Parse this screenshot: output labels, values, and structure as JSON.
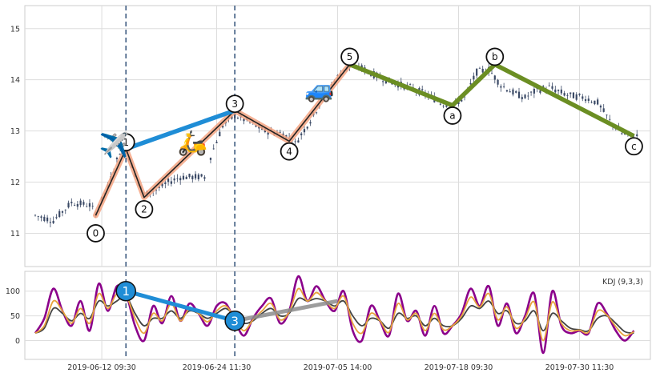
{
  "chart_data": [
    {
      "type": "candlestick",
      "panel": "price",
      "ylim": [
        10.35,
        15.45
      ],
      "yticks": [
        11,
        12,
        13,
        14,
        15
      ],
      "grid": true,
      "x_index_range": [
        0,
        100
      ],
      "xtick_positions": [
        11,
        30,
        50,
        70,
        90
      ],
      "xtick_labels": [
        "2019-06-12 09:30",
        "2019-06-24 11:30",
        "2019-07-05 14:00",
        "2019-07-18 09:30",
        "2019-07-30 11:30"
      ],
      "vertical_markers": [
        15,
        33
      ],
      "candles_anchor": [
        [
          0,
          11.35
        ],
        [
          3,
          11.25
        ],
        [
          6,
          11.6
        ],
        [
          9,
          11.55
        ],
        [
          10,
          11.4
        ],
        [
          12,
          11.9
        ],
        [
          14,
          12.6
        ],
        [
          15,
          12.65
        ],
        [
          17,
          12.0
        ],
        [
          18,
          11.75
        ],
        [
          20,
          11.85
        ],
        [
          22,
          12.0
        ],
        [
          24,
          12.1
        ],
        [
          27,
          12.1
        ],
        [
          28,
          12.1
        ],
        [
          29,
          12.5
        ],
        [
          31,
          13.1
        ],
        [
          33,
          13.3
        ],
        [
          35,
          13.2
        ],
        [
          38,
          13.0
        ],
        [
          41,
          12.95
        ],
        [
          43,
          12.75
        ],
        [
          46,
          13.3
        ],
        [
          48,
          13.75
        ],
        [
          51,
          14.2
        ],
        [
          53,
          14.3
        ],
        [
          56,
          14.1
        ],
        [
          59,
          13.95
        ],
        [
          62,
          13.85
        ],
        [
          65,
          13.7
        ],
        [
          67,
          13.55
        ],
        [
          69,
          13.5
        ],
        [
          71,
          13.65
        ],
        [
          73,
          14.15
        ],
        [
          75,
          14.2
        ],
        [
          77,
          13.9
        ],
        [
          79,
          13.75
        ],
        [
          81,
          13.65
        ],
        [
          83,
          13.8
        ],
        [
          85,
          13.85
        ],
        [
          88,
          13.7
        ],
        [
          91,
          13.65
        ],
        [
          93,
          13.55
        ],
        [
          95,
          13.2
        ],
        [
          97,
          12.95
        ],
        [
          99,
          12.9
        ]
      ],
      "wave_main": {
        "points": [
          [
            10,
            11.35
          ],
          [
            15,
            12.65
          ],
          [
            18,
            11.7
          ],
          [
            33,
            13.4
          ],
          [
            42,
            12.8
          ],
          [
            52,
            14.3
          ]
        ],
        "labels": [
          "0",
          "1",
          "2",
          "3",
          "4",
          "5"
        ]
      },
      "wave_correction": {
        "points": [
          [
            52,
            14.3
          ],
          [
            69,
            13.5
          ],
          [
            76,
            14.3
          ],
          [
            99,
            12.9
          ]
        ],
        "labels": [
          "a",
          "b",
          "c"
        ]
      },
      "wave_blue_segment": [
        [
          15,
          12.65
        ],
        [
          33,
          13.4
        ]
      ],
      "label_offsets": [
        [
          10,
          11.0
        ],
        [
          15,
          12.78
        ],
        [
          18,
          11.47
        ],
        [
          33,
          13.53
        ],
        [
          42,
          12.6
        ],
        [
          52,
          14.45
        ],
        [
          69,
          13.3
        ],
        [
          76,
          14.45
        ],
        [
          99,
          12.7
        ]
      ],
      "emoji_markers": [
        {
          "emoji": "✈️",
          "x": 13,
          "y": 12.75
        },
        {
          "emoji": "🛵",
          "x": 26,
          "y": 12.8
        },
        {
          "emoji": "🚙",
          "x": 47,
          "y": 13.85
        }
      ]
    },
    {
      "type": "line",
      "panel": "indicator",
      "legend": "KDJ (9,3,3)",
      "ylim": [
        -38,
        140
      ],
      "yticks": [
        0,
        50,
        100
      ],
      "grid": true,
      "series": [
        {
          "name": "J",
          "color": "#8b008b",
          "points": [
            [
              0,
              15
            ],
            [
              1.5,
              45
            ],
            [
              3,
              105
            ],
            [
              4.5,
              60
            ],
            [
              6,
              30
            ],
            [
              7.5,
              80
            ],
            [
              9,
              20
            ],
            [
              10.5,
              115
            ],
            [
              12,
              60
            ],
            [
              13.5,
              110
            ],
            [
              15,
              95
            ],
            [
              16.5,
              30
            ],
            [
              18,
              0
            ],
            [
              19.5,
              70
            ],
            [
              21,
              35
            ],
            [
              22.5,
              90
            ],
            [
              24,
              40
            ],
            [
              25.5,
              75
            ],
            [
              27,
              55
            ],
            [
              28.5,
              30
            ],
            [
              30,
              70
            ],
            [
              31.5,
              75
            ],
            [
              33,
              40
            ],
            [
              34.5,
              10
            ],
            [
              36,
              45
            ],
            [
              37.5,
              70
            ],
            [
              39,
              85
            ],
            [
              40.5,
              35
            ],
            [
              42,
              60
            ],
            [
              43.5,
              130
            ],
            [
              45,
              80
            ],
            [
              46.5,
              110
            ],
            [
              48,
              80
            ],
            [
              49.5,
              60
            ],
            [
              51,
              100
            ],
            [
              52.5,
              20
            ],
            [
              54,
              0
            ],
            [
              55.5,
              70
            ],
            [
              57,
              40
            ],
            [
              58.5,
              10
            ],
            [
              60,
              95
            ],
            [
              61.5,
              40
            ],
            [
              63,
              60
            ],
            [
              64.5,
              10
            ],
            [
              66,
              70
            ],
            [
              67.5,
              15
            ],
            [
              69,
              30
            ],
            [
              70.5,
              55
            ],
            [
              72,
              105
            ],
            [
              73.5,
              70
            ],
            [
              75,
              110
            ],
            [
              76.5,
              30
            ],
            [
              78,
              75
            ],
            [
              79.5,
              15
            ],
            [
              81,
              50
            ],
            [
              82.5,
              95
            ],
            [
              84,
              -25
            ],
            [
              85.5,
              100
            ],
            [
              87,
              30
            ],
            [
              88.5,
              15
            ],
            [
              90,
              20
            ],
            [
              91.5,
              15
            ],
            [
              93,
              75
            ],
            [
              94.5,
              55
            ],
            [
              96,
              20
            ],
            [
              97.5,
              0
            ],
            [
              99,
              20
            ]
          ]
        },
        {
          "name": "D",
          "color": "#444444",
          "points": [
            [
              0,
              15
            ],
            [
              1.5,
              25
            ],
            [
              3,
              65
            ],
            [
              4.5,
              55
            ],
            [
              6,
              40
            ],
            [
              7.5,
              55
            ],
            [
              9,
              45
            ],
            [
              10.5,
              80
            ],
            [
              12,
              70
            ],
            [
              13.5,
              80
            ],
            [
              15,
              90
            ],
            [
              16.5,
              55
            ],
            [
              18,
              30
            ],
            [
              19.5,
              45
            ],
            [
              21,
              45
            ],
            [
              22.5,
              60
            ],
            [
              24,
              45
            ],
            [
              25.5,
              60
            ],
            [
              27,
              55
            ],
            [
              28.5,
              45
            ],
            [
              30,
              55
            ],
            [
              31.5,
              65
            ],
            [
              33,
              50
            ],
            [
              34.5,
              35
            ],
            [
              36,
              40
            ],
            [
              37.5,
              55
            ],
            [
              39,
              65
            ],
            [
              40.5,
              50
            ],
            [
              42,
              55
            ],
            [
              43.5,
              85
            ],
            [
              45,
              80
            ],
            [
              46.5,
              85
            ],
            [
              48,
              80
            ],
            [
              49.5,
              70
            ],
            [
              51,
              80
            ],
            [
              52.5,
              50
            ],
            [
              54,
              30
            ],
            [
              55.5,
              45
            ],
            [
              57,
              40
            ],
            [
              58.5,
              25
            ],
            [
              60,
              55
            ],
            [
              61.5,
              45
            ],
            [
              63,
              50
            ],
            [
              64.5,
              30
            ],
            [
              66,
              45
            ],
            [
              67.5,
              30
            ],
            [
              69,
              30
            ],
            [
              70.5,
              45
            ],
            [
              72,
              70
            ],
            [
              73.5,
              65
            ],
            [
              75,
              80
            ],
            [
              76.5,
              55
            ],
            [
              78,
              60
            ],
            [
              79.5,
              35
            ],
            [
              81,
              40
            ],
            [
              82.5,
              60
            ],
            [
              84,
              20
            ],
            [
              85.5,
              55
            ],
            [
              87,
              40
            ],
            [
              88.5,
              25
            ],
            [
              90,
              22
            ],
            [
              91.5,
              20
            ],
            [
              93,
              45
            ],
            [
              94.5,
              50
            ],
            [
              96,
              35
            ],
            [
              97.5,
              18
            ],
            [
              99,
              15
            ]
          ]
        },
        {
          "name": "K",
          "color": "#e8a33d",
          "points": [
            [
              0,
              15
            ],
            [
              1.5,
              30
            ],
            [
              3,
              80
            ],
            [
              4.5,
              60
            ],
            [
              6,
              35
            ],
            [
              7.5,
              65
            ],
            [
              9,
              35
            ],
            [
              10.5,
              95
            ],
            [
              12,
              65
            ],
            [
              13.5,
              95
            ],
            [
              15,
              92
            ],
            [
              16.5,
              45
            ],
            [
              18,
              15
            ],
            [
              19.5,
              55
            ],
            [
              21,
              40
            ],
            [
              22.5,
              75
            ],
            [
              24,
              40
            ],
            [
              25.5,
              65
            ],
            [
              27,
              55
            ],
            [
              28.5,
              38
            ],
            [
              30,
              60
            ],
            [
              31.5,
              70
            ],
            [
              33,
              45
            ],
            [
              34.5,
              20
            ],
            [
              36,
              42
            ],
            [
              37.5,
              60
            ],
            [
              39,
              75
            ],
            [
              40.5,
              42
            ],
            [
              42,
              58
            ],
            [
              43.5,
              105
            ],
            [
              45,
              80
            ],
            [
              46.5,
              97
            ],
            [
              48,
              80
            ],
            [
              49.5,
              65
            ],
            [
              51,
              90
            ],
            [
              52.5,
              35
            ],
            [
              54,
              15
            ],
            [
              55.5,
              55
            ],
            [
              57,
              40
            ],
            [
              58.5,
              17
            ],
            [
              60,
              75
            ],
            [
              61.5,
              42
            ],
            [
              63,
              55
            ],
            [
              64.5,
              20
            ],
            [
              66,
              55
            ],
            [
              67.5,
              22
            ],
            [
              69,
              30
            ],
            [
              70.5,
              50
            ],
            [
              72,
              88
            ],
            [
              73.5,
              68
            ],
            [
              75,
              95
            ],
            [
              76.5,
              42
            ],
            [
              78,
              68
            ],
            [
              79.5,
              25
            ],
            [
              81,
              45
            ],
            [
              82.5,
              78
            ],
            [
              84,
              0
            ],
            [
              85.5,
              78
            ],
            [
              87,
              35
            ],
            [
              88.5,
              20
            ],
            [
              90,
              21
            ],
            [
              91.5,
              17
            ],
            [
              93,
              60
            ],
            [
              94.5,
              52
            ],
            [
              96,
              28
            ],
            [
              97.5,
              10
            ],
            [
              99,
              18
            ]
          ]
        }
      ],
      "divergence_blue": {
        "points": [
          [
            15,
            100
          ],
          [
            33,
            40
          ]
        ],
        "labels": [
          "1",
          "3"
        ]
      },
      "divergence_gray": [
        [
          33,
          40
        ],
        [
          50,
          80
        ]
      ]
    }
  ]
}
